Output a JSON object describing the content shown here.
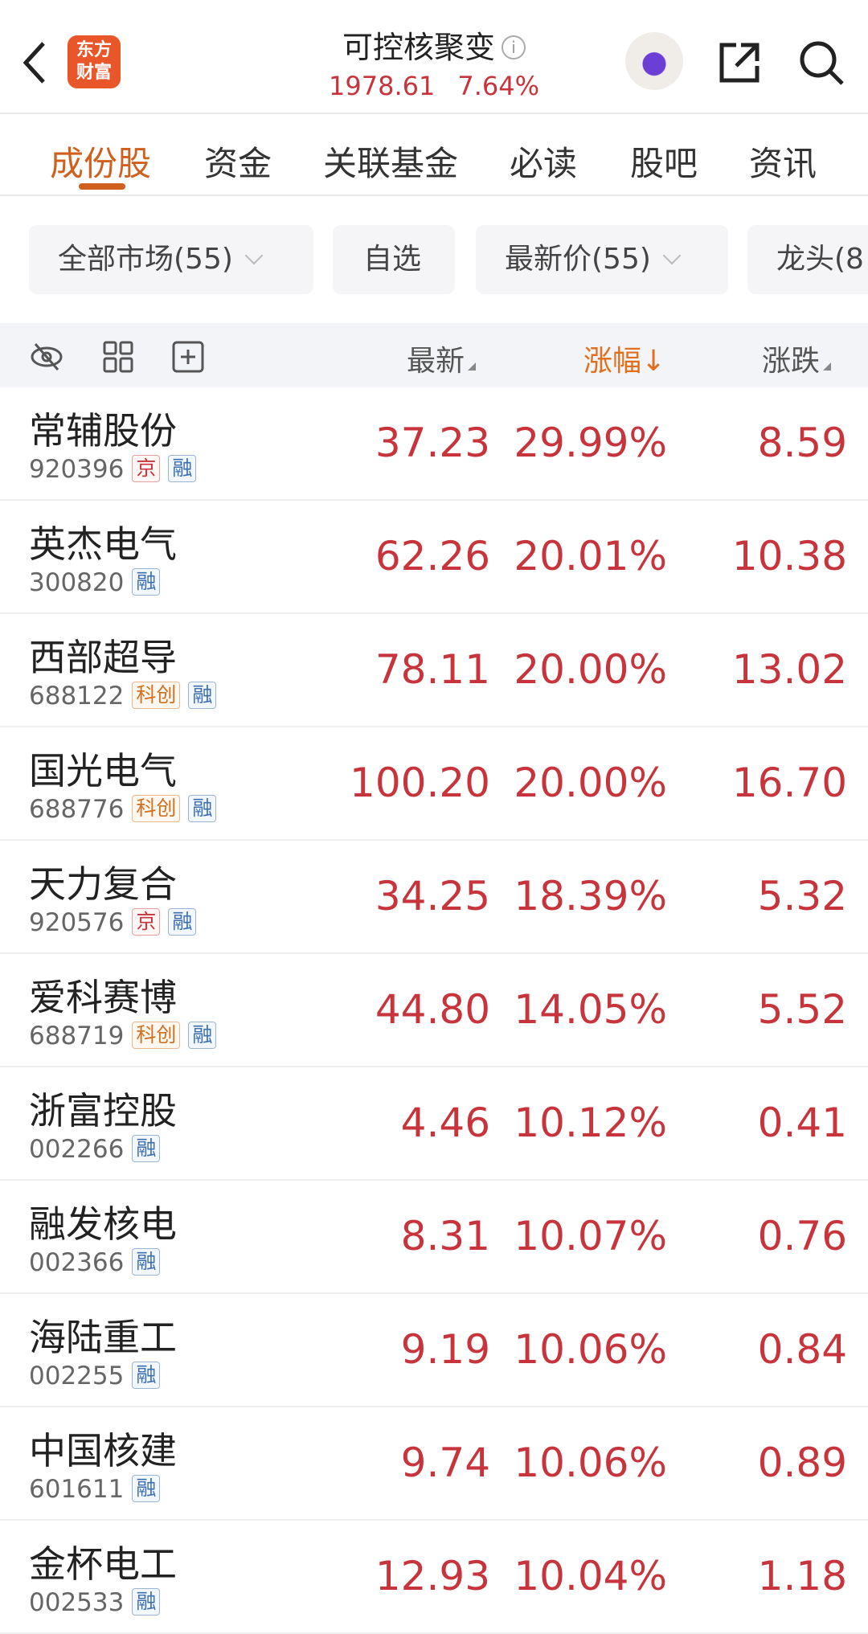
{
  "header": {
    "logo_text": "东方财富",
    "title": "可控核聚变",
    "index_value": "1978.61",
    "index_change_pct": "7.64%"
  },
  "tabs": [
    {
      "label": "成份股",
      "active": true
    },
    {
      "label": "资金"
    },
    {
      "label": "关联基金"
    },
    {
      "label": "必读"
    },
    {
      "label": "股吧"
    },
    {
      "label": "资讯"
    }
  ],
  "filters": [
    {
      "label": "全部市场(55)",
      "dropdown": true
    },
    {
      "label": "自选"
    },
    {
      "label": "最新价(55)",
      "dropdown": true
    },
    {
      "label": "龙头(8"
    }
  ],
  "table": {
    "columns": [
      "最新",
      "涨幅↓",
      "涨跌"
    ],
    "sorted_column": "涨幅",
    "rows": [
      {
        "name": "常辅股份",
        "code": "920396",
        "tags": [
          "京",
          "融"
        ],
        "price": "37.23",
        "pct": "29.99%",
        "change": "8.59"
      },
      {
        "name": "英杰电气",
        "code": "300820",
        "tags": [
          "融"
        ],
        "price": "62.26",
        "pct": "20.01%",
        "change": "10.38"
      },
      {
        "name": "西部超导",
        "code": "688122",
        "tags": [
          "科创",
          "融"
        ],
        "price": "78.11",
        "pct": "20.00%",
        "change": "13.02"
      },
      {
        "name": "国光电气",
        "code": "688776",
        "tags": [
          "科创",
          "融"
        ],
        "price": "100.20",
        "pct": "20.00%",
        "change": "16.70"
      },
      {
        "name": "天力复合",
        "code": "920576",
        "tags": [
          "京",
          "融"
        ],
        "price": "34.25",
        "pct": "18.39%",
        "change": "5.32"
      },
      {
        "name": "爱科赛博",
        "code": "688719",
        "tags": [
          "科创",
          "融"
        ],
        "price": "44.80",
        "pct": "14.05%",
        "change": "5.52"
      },
      {
        "name": "浙富控股",
        "code": "002266",
        "tags": [
          "融"
        ],
        "price": "4.46",
        "pct": "10.12%",
        "change": "0.41"
      },
      {
        "name": "融发核电",
        "code": "002366",
        "tags": [
          "融"
        ],
        "price": "8.31",
        "pct": "10.07%",
        "change": "0.76"
      },
      {
        "name": "海陆重工",
        "code": "002255",
        "tags": [
          "融"
        ],
        "price": "9.19",
        "pct": "10.06%",
        "change": "0.84"
      },
      {
        "name": "中国核建",
        "code": "601611",
        "tags": [
          "融"
        ],
        "price": "9.74",
        "pct": "10.06%",
        "change": "0.89"
      },
      {
        "name": "金杯电工",
        "code": "002533",
        "tags": [
          "融"
        ],
        "price": "12.93",
        "pct": "10.04%",
        "change": "1.18"
      }
    ]
  },
  "colors": {
    "accent": "#d0601e",
    "up": "#c8343b"
  }
}
